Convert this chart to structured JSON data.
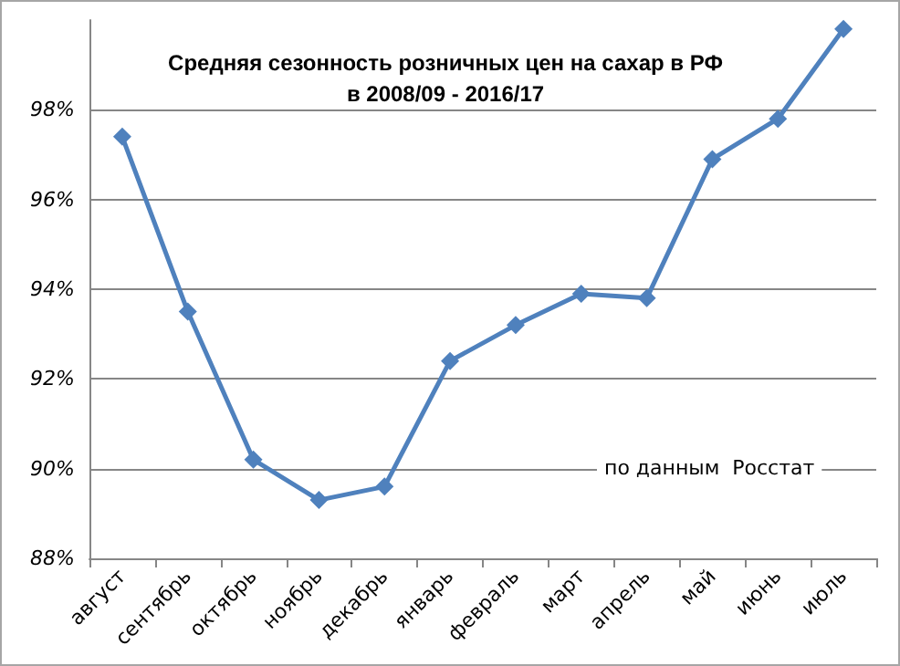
{
  "chart_data": {
    "type": "line",
    "title": "Средняя сезонность розничных цен на сахар в РФ\nв 2008/09 - 2016/17",
    "annotations": [
      "по данным  Росстат"
    ],
    "categories": [
      "август",
      "сентябрь",
      "октябрь",
      "ноябрь",
      "декабрь",
      "январь",
      "февраль",
      "март",
      "апрель",
      "май",
      "июнь",
      "июль"
    ],
    "series": [
      {
        "color": "#4f81bd",
        "values": [
          97.4,
          93.5,
          90.2,
          89.3,
          89.6,
          92.4,
          93.2,
          93.9,
          93.8,
          96.9,
          97.8,
          99.8
        ]
      }
    ],
    "ylim": [
      88,
      100
    ],
    "yticks": [
      {
        "value": 88,
        "label": "88%"
      },
      {
        "value": 90,
        "label": "90%"
      },
      {
        "value": 92,
        "label": "92%"
      },
      {
        "value": 94,
        "label": "94%"
      },
      {
        "value": 96,
        "label": "96%"
      },
      {
        "value": 98,
        "label": "98%"
      }
    ],
    "grid": "y",
    "marker": "diamond",
    "line_style": "solid"
  }
}
